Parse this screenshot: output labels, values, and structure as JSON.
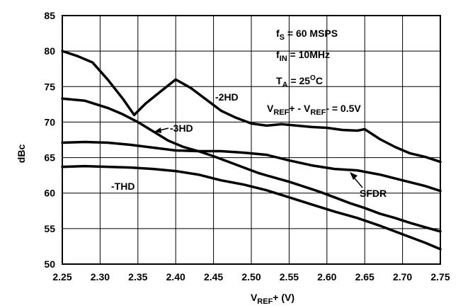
{
  "chart_data": {
    "type": "line",
    "xlabel": {
      "main": "V",
      "sub": "REF",
      "suffix": "+ (V)"
    },
    "ylabel": "dBc",
    "xlim": [
      2.25,
      2.75
    ],
    "ylim": [
      50,
      85
    ],
    "x_ticks": [
      "2.25",
      "2.30",
      "2.35",
      "2.40",
      "2.45",
      "2.50",
      "2.55",
      "2.60",
      "2.65",
      "2.70",
      "2.75"
    ],
    "y_ticks": [
      "50",
      "55",
      "60",
      "65",
      "70",
      "75",
      "80",
      "85"
    ],
    "grid": true,
    "annotations": [
      {
        "main": "f",
        "sub": "S",
        "rest": " = 60 MSPS"
      },
      {
        "main": "f",
        "sub": "IN",
        "rest": " = 10MHz"
      },
      {
        "main": "T",
        "sub": "A",
        "rest": " = 25",
        "sup": "O",
        "rest2": "C"
      },
      {
        "main": "V",
        "sub": "REF",
        "rest": "+ - V",
        "sub2": "REF",
        "rest2": "- = 0.5V"
      }
    ],
    "series": [
      {
        "name": "-2HD",
        "x": [
          2.25,
          2.27,
          2.29,
          2.31,
          2.33,
          2.345,
          2.36,
          2.38,
          2.4,
          2.42,
          2.44,
          2.46,
          2.48,
          2.5,
          2.52,
          2.54,
          2.56,
          2.58,
          2.6,
          2.62,
          2.64,
          2.65,
          2.67,
          2.69,
          2.71,
          2.73,
          2.75
        ],
        "y": [
          80.0,
          79.3,
          78.4,
          76.0,
          73.3,
          71.0,
          72.6,
          74.3,
          76.0,
          74.8,
          73.2,
          71.6,
          70.6,
          69.8,
          69.5,
          69.7,
          69.5,
          69.3,
          69.2,
          68.9,
          68.8,
          69.0,
          67.6,
          66.5,
          65.6,
          65.1,
          64.4
        ]
      },
      {
        "name": "-3HD",
        "x": [
          2.25,
          2.28,
          2.31,
          2.33,
          2.35,
          2.37,
          2.39,
          2.41,
          2.43,
          2.45,
          2.47,
          2.49,
          2.51,
          2.53,
          2.55,
          2.57,
          2.59,
          2.61,
          2.63,
          2.65,
          2.67,
          2.69,
          2.71,
          2.73,
          2.75
        ],
        "y": [
          73.3,
          73.0,
          72.0,
          71.1,
          70.0,
          68.7,
          67.4,
          66.5,
          65.9,
          65.2,
          64.4,
          63.6,
          62.8,
          62.2,
          61.6,
          60.9,
          60.2,
          59.4,
          58.6,
          57.9,
          57.1,
          56.5,
          55.8,
          55.2,
          54.6
        ]
      },
      {
        "name": "SFDR",
        "x": [
          2.25,
          2.28,
          2.31,
          2.34,
          2.37,
          2.4,
          2.43,
          2.46,
          2.49,
          2.52,
          2.55,
          2.58,
          2.61,
          2.64,
          2.67,
          2.7,
          2.73,
          2.75
        ],
        "y": [
          67.1,
          67.2,
          67.1,
          66.8,
          66.4,
          66.0,
          65.9,
          65.9,
          65.7,
          65.4,
          64.6,
          63.9,
          63.4,
          63.2,
          62.6,
          61.8,
          61.0,
          60.3
        ]
      },
      {
        "name": "-THD",
        "x": [
          2.25,
          2.28,
          2.31,
          2.34,
          2.37,
          2.4,
          2.43,
          2.46,
          2.49,
          2.52,
          2.55,
          2.58,
          2.61,
          2.64,
          2.67,
          2.7,
          2.73,
          2.75
        ],
        "y": [
          63.7,
          63.8,
          63.7,
          63.6,
          63.4,
          63.1,
          62.6,
          61.8,
          61.2,
          60.4,
          59.4,
          58.4,
          57.4,
          56.5,
          55.4,
          54.2,
          53.0,
          52.1
        ]
      }
    ]
  }
}
